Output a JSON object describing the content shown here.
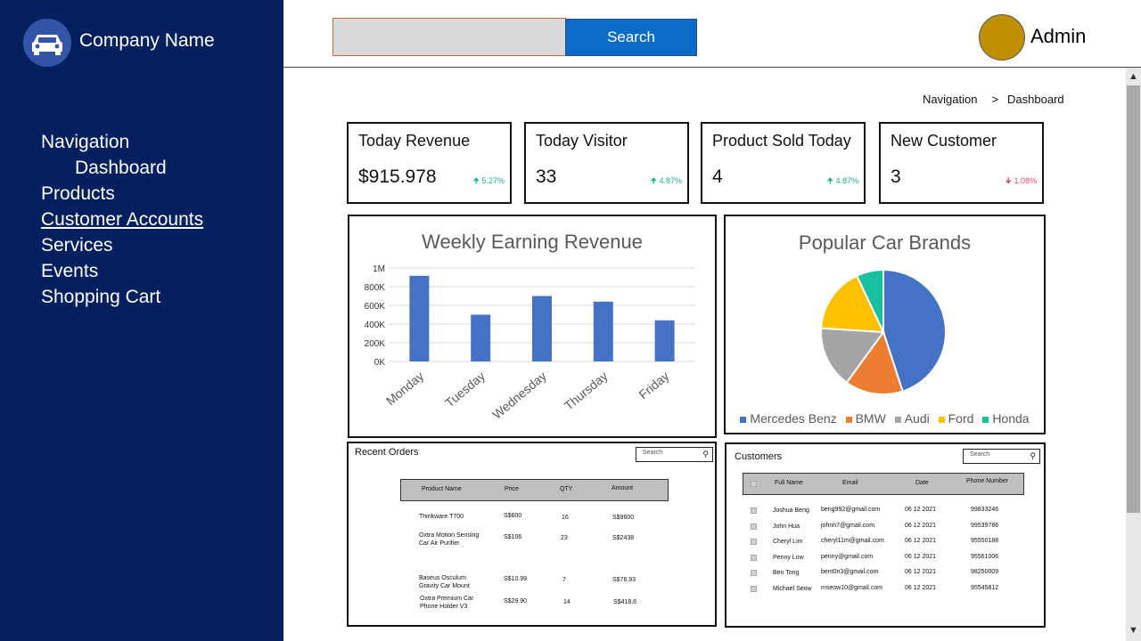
{
  "sidebar": {
    "company_name": "Company Name",
    "nav": {
      "navigation": "Navigation",
      "dashboard": "Dashboard",
      "products": "Products",
      "customer_accounts": "Customer Accounts",
      "services": "Services",
      "events": "Events",
      "shopping_cart": "Shopping Cart"
    }
  },
  "header": {
    "search_value": "",
    "search_button": "Search",
    "user_name": "Admin"
  },
  "breadcrumb": {
    "parent": "Navigation",
    "separator": ">",
    "current": "Dashboard"
  },
  "stats": [
    {
      "title": "Today Revenue",
      "value": "$915.978",
      "change": "5.27%",
      "direction": "up"
    },
    {
      "title": "Today Visitor",
      "value": "33",
      "change": "4.87%",
      "direction": "up"
    },
    {
      "title": "Product Sold Today",
      "value": "4",
      "change": "4.87%",
      "direction": "up"
    },
    {
      "title": "New Customer",
      "value": "3",
      "change": "1.08%",
      "direction": "down"
    }
  ],
  "colors": {
    "sidebar_bg": "#04205f",
    "search_button": "#0a6cc6",
    "avatar": "#bf8f00",
    "up": "#18b48a",
    "down": "#e34b6b",
    "bar": "#4472c4"
  },
  "chart_data": [
    {
      "type": "bar",
      "title": "Weekly Earning Revenue",
      "categories": [
        "Monday",
        "Tuesday",
        "Wednesday",
        "Thursday",
        "Friday"
      ],
      "values": [
        915978,
        500000,
        700000,
        640000,
        440000
      ],
      "yticks": [
        "0K",
        "200K",
        "400K",
        "600K",
        "800K",
        "1M"
      ],
      "ylim": [
        0,
        1000000
      ],
      "grid": true,
      "color": "#4472c4"
    },
    {
      "type": "pie",
      "title": "Popular Car Brands",
      "labels": [
        "Mercedes Benz",
        "BMW",
        "Audi",
        "Ford",
        "Honda"
      ],
      "values": [
        45,
        15,
        16,
        17,
        7
      ],
      "colors": [
        "#4472c4",
        "#ed7d31",
        "#a5a5a5",
        "#ffc000",
        "#19c0a0"
      ],
      "legend": "bottom"
    }
  ],
  "recent_orders": {
    "title": "Recent Orders",
    "search_placeholder": "Search",
    "headers": [
      "Product Name",
      "Price",
      "QTY",
      "Amount"
    ],
    "rows": [
      {
        "name": "Thinkware T700",
        "price": "S$600",
        "qty": "16",
        "amount": "S$9600"
      },
      {
        "name": "Oxtra Motion Sensing\nCar Air Purifier",
        "price": "S$106",
        "qty": "23",
        "amount": "S$2438"
      },
      {
        "name": "Baseus Osculum\nGravity Car Mount",
        "price": "S$10.99",
        "qty": "7",
        "amount": "S$76.93"
      },
      {
        "name": "Oxtra Premium Car\nPhone Holder V3",
        "price": "S$29.90",
        "qty": "14",
        "amount": "S$418.6"
      }
    ]
  },
  "customers": {
    "title": "Customers",
    "search_placeholder": "Search",
    "headers": [
      "Full Name",
      "Email",
      "Date",
      "Phone Number"
    ],
    "rows": [
      {
        "name": "Joshua Beng",
        "email": "beng992@gmail.com",
        "date": "06 12 2021",
        "phone": "99833246"
      },
      {
        "name": "John Hua",
        "email": "johnh7@gmail.com",
        "date": "06 12 2021",
        "phone": "99539786"
      },
      {
        "name": "Cheryl Lim",
        "email": "cheryl11m@gmail.com",
        "date": "06 12 2021",
        "phone": "95550188"
      },
      {
        "name": "Penny Low",
        "email": "penny@gmail.com",
        "date": "06 12 2021",
        "phone": "95561006"
      },
      {
        "name": "Ben Tong",
        "email": "bent0n3@gmail.com",
        "date": "06 12 2021",
        "phone": "98250009"
      },
      {
        "name": "Michael Seow",
        "email": "mseow10@gmail.com",
        "date": "06 12 2021",
        "phone": "95545812"
      }
    ]
  }
}
